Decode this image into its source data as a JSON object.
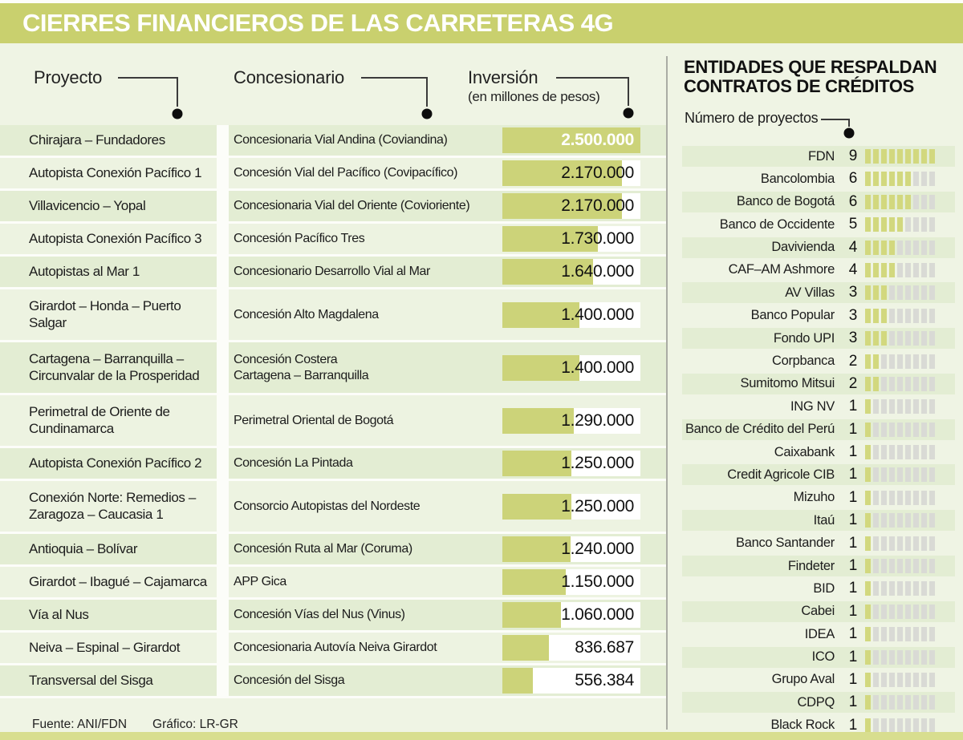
{
  "title": "CIERRES FINANCIEROS DE LAS CARRETERAS 4G",
  "colors": {
    "banner_olive": "#c9d06e",
    "bar_fill": "#ccd379",
    "row_dark": "#e3edd3",
    "row_light": "#edf3e1",
    "page_bg": "#eff4e4",
    "bottom_strip": "#d8de8f",
    "segment_green": "#d2d87e",
    "segment_gray": "#d9dad5"
  },
  "table": {
    "headers": {
      "project": "Proyecto",
      "concessionaire": "Concesionario",
      "investment": "Inversión",
      "investment_sub": "(en millones de pesos)"
    },
    "max_value": 2500000,
    "rows": [
      {
        "project": "Chirajara – Fundadores",
        "concessionaire": "Concesionaria Vial Andina (Coviandina)",
        "value": 2500000,
        "value_display": "2.500.000",
        "lines": 1,
        "highlight": true
      },
      {
        "project": "Autopista Conexión Pacífico 1",
        "concessionaire": "Concesión Vial del Pacífico (Covipacífico)",
        "value": 2170000,
        "value_display": "2.170.000",
        "lines": 1,
        "highlight": false
      },
      {
        "project": "Villavicencio – Yopal",
        "concessionaire": "Concesionaria Vial del Oriente (Covioriente)",
        "value": 2170000,
        "value_display": "2.170.000",
        "lines": 1,
        "highlight": false
      },
      {
        "project": "Autopista Conexión Pacífico 3",
        "concessionaire": "Concesión Pacífico Tres",
        "value": 1730000,
        "value_display": "1.730.000",
        "lines": 1,
        "highlight": false
      },
      {
        "project": "Autopistas al Mar 1",
        "concessionaire": "Concesionario Desarrollo Vial al Mar",
        "value": 1640000,
        "value_display": "1.640.000",
        "lines": 1,
        "highlight": false
      },
      {
        "project": "Girardot – Honda – Puerto Salgar",
        "concessionaire": "Concesión Alto Magdalena",
        "value": 1400000,
        "value_display": "1.400.000",
        "lines": 2,
        "highlight": false
      },
      {
        "project": "Cartagena – Barranquilla – Circunvalar de la Prosperidad",
        "concessionaire": "Concesión Costera\nCartagena – Barranquilla",
        "value": 1400000,
        "value_display": "1.400.000",
        "lines": 2,
        "highlight": false
      },
      {
        "project": "Perimetral de Oriente de Cundinamarca",
        "concessionaire": "Perimetral Oriental de Bogotá",
        "value": 1290000,
        "value_display": "1.290.000",
        "lines": 2,
        "highlight": false
      },
      {
        "project": "Autopista Conexión Pacífico 2",
        "concessionaire": "Concesión La Pintada",
        "value": 1250000,
        "value_display": "1.250.000",
        "lines": 1,
        "highlight": false
      },
      {
        "project": "Conexión Norte: Remedios –Zaragoza – Caucasia 1",
        "concessionaire": "Consorcio Autopistas del Nordeste",
        "value": 1250000,
        "value_display": "1.250.000",
        "lines": 2,
        "highlight": false
      },
      {
        "project": "Antioquia – Bolívar",
        "concessionaire": "Concesión Ruta al Mar (Coruma)",
        "value": 1240000,
        "value_display": "1.240.000",
        "lines": 1,
        "highlight": false
      },
      {
        "project": "Girardot – Ibagué – Cajamarca",
        "concessionaire": "APP Gica",
        "value": 1150000,
        "value_display": "1.150.000",
        "lines": 1,
        "highlight": false
      },
      {
        "project": "Vía al Nus",
        "concessionaire": "Concesión Vías del Nus (Vinus)",
        "value": 1060000,
        "value_display": "1.060.000",
        "lines": 1,
        "highlight": false
      },
      {
        "project": "Neiva – Espinal – Girardot",
        "concessionaire": "Concesionaria Autovía Neiva Girardot",
        "value": 836687,
        "value_display": "836.687",
        "lines": 1,
        "highlight": false
      },
      {
        "project": "Transversal del Sisga",
        "concessionaire": "Concesión del Sisga",
        "value": 556384,
        "value_display": "556.384",
        "lines": 1,
        "highlight": false
      }
    ]
  },
  "sidebar": {
    "title_line1": "ENTIDADES QUE RESPALDAN",
    "title_line2": "CONTRATOS DE CRÉDITOS",
    "axis_label": "Número de proyectos",
    "max_projects": 9,
    "entities": [
      {
        "name": "FDN",
        "count": 9
      },
      {
        "name": "Bancolombia",
        "count": 6
      },
      {
        "name": "Banco de Bogotá",
        "count": 6
      },
      {
        "name": "Banco de Occidente",
        "count": 5
      },
      {
        "name": "Davivienda",
        "count": 4
      },
      {
        "name": "CAF–AM Ashmore",
        "count": 4
      },
      {
        "name": "AV Villas",
        "count": 3
      },
      {
        "name": "Banco Popular",
        "count": 3
      },
      {
        "name": "Fondo UPI",
        "count": 3
      },
      {
        "name": "Corpbanca",
        "count": 2
      },
      {
        "name": "Sumitomo Mitsui",
        "count": 2
      },
      {
        "name": "ING NV",
        "count": 1
      },
      {
        "name": "Banco de Crédito del Perú",
        "count": 1
      },
      {
        "name": "Caixabank",
        "count": 1
      },
      {
        "name": "Credit Agricole CIB",
        "count": 1
      },
      {
        "name": "Mizuho",
        "count": 1
      },
      {
        "name": "Itaú",
        "count": 1
      },
      {
        "name": "Banco Santander",
        "count": 1
      },
      {
        "name": "Findeter",
        "count": 1
      },
      {
        "name": "BID",
        "count": 1
      },
      {
        "name": "Cabei",
        "count": 1
      },
      {
        "name": "IDEA",
        "count": 1
      },
      {
        "name": "ICO",
        "count": 1
      },
      {
        "name": "Grupo Aval",
        "count": 1
      },
      {
        "name": "CDPQ",
        "count": 1
      },
      {
        "name": "Black Rock",
        "count": 1
      }
    ]
  },
  "footer": {
    "source": "Fuente: ANI/FDN",
    "credit": "Gráfico: LR-GR"
  },
  "chart_data": [
    {
      "type": "bar",
      "title": "CIERRES FINANCIEROS DE LAS CARRETERAS 4G",
      "orientation": "horizontal",
      "categories": [
        "Chirajara – Fundadores",
        "Autopista Conexión Pacífico 1",
        "Villavicencio – Yopal",
        "Autopista Conexión Pacífico 3",
        "Autopistas al Mar 1",
        "Girardot – Honda – Puerto Salgar",
        "Cartagena – Barranquilla – Circunvalar de la Prosperidad",
        "Perimetral de Oriente de Cundinamarca",
        "Autopista Conexión Pacífico 2",
        "Conexión Norte: Remedios –Zaragoza – Caucasia 1",
        "Antioquia – Bolívar",
        "Girardot – Ibagué – Cajamarca",
        "Vía al Nus",
        "Neiva – Espinal – Girardot",
        "Transversal del Sisga"
      ],
      "values": [
        2500000,
        2170000,
        2170000,
        1730000,
        1640000,
        1400000,
        1400000,
        1290000,
        1250000,
        1250000,
        1240000,
        1150000,
        1060000,
        836687,
        556384
      ],
      "xlabel": "Inversión (en millones de pesos)",
      "ylabel": "Proyecto",
      "xlim": [
        0,
        2500000
      ],
      "grid": false,
      "legend": false
    },
    {
      "type": "bar",
      "title": "ENTIDADES QUE RESPALDAN CONTRATOS DE CRÉDITOS",
      "orientation": "horizontal",
      "categories": [
        "FDN",
        "Bancolombia",
        "Banco de Bogotá",
        "Banco de Occidente",
        "Davivienda",
        "CAF–AM Ashmore",
        "AV Villas",
        "Banco Popular",
        "Fondo UPI",
        "Corpbanca",
        "Sumitomo Mitsui",
        "ING NV",
        "Banco de Crédito del Perú",
        "Caixabank",
        "Credit Agricole CIB",
        "Mizuho",
        "Itaú",
        "Banco Santander",
        "Findeter",
        "BID",
        "Cabei",
        "IDEA",
        "ICO",
        "Grupo Aval",
        "CDPQ",
        "Black Rock"
      ],
      "values": [
        9,
        6,
        6,
        5,
        4,
        4,
        3,
        3,
        3,
        2,
        2,
        1,
        1,
        1,
        1,
        1,
        1,
        1,
        1,
        1,
        1,
        1,
        1,
        1,
        1,
        1
      ],
      "xlabel": "Número de proyectos",
      "xlim": [
        0,
        9
      ],
      "grid": false,
      "legend": false
    }
  ]
}
